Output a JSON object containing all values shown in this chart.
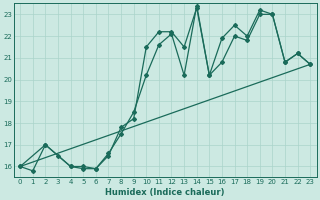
{
  "xlabel": "Humidex (Indice chaleur)",
  "ylabel": "",
  "xlim": [
    -0.5,
    23.5
  ],
  "ylim": [
    15.5,
    23.5
  ],
  "yticks": [
    16,
    17,
    18,
    19,
    20,
    21,
    22,
    23
  ],
  "xticks": [
    0,
    1,
    2,
    3,
    4,
    5,
    6,
    7,
    8,
    9,
    10,
    11,
    12,
    13,
    14,
    15,
    16,
    17,
    18,
    19,
    20,
    21,
    22,
    23
  ],
  "bg_color": "#cce9e2",
  "grid_color": "#aad4cb",
  "line_color": "#1a6b5a",
  "line1_x": [
    0,
    1,
    2,
    3,
    4,
    5,
    6,
    7,
    8,
    9,
    10,
    11,
    12,
    13,
    14,
    15,
    16,
    17,
    18,
    19,
    20,
    21,
    22,
    23
  ],
  "line1_y": [
    16.0,
    15.8,
    17.0,
    16.5,
    16.0,
    15.9,
    15.9,
    16.5,
    17.8,
    18.2,
    21.5,
    22.2,
    22.2,
    21.5,
    23.3,
    20.2,
    20.8,
    22.0,
    21.8,
    23.0,
    23.0,
    20.8,
    21.2,
    20.7
  ],
  "line2_x": [
    0,
    23
  ],
  "line2_y": [
    16.0,
    20.7
  ],
  "line3_x": [
    0,
    2,
    4,
    5,
    6,
    7,
    8,
    9,
    10,
    11,
    12,
    13,
    14,
    15,
    16,
    17,
    18,
    19,
    20,
    21,
    22,
    23
  ],
  "line3_y": [
    16.0,
    17.0,
    16.0,
    16.0,
    15.9,
    16.6,
    17.5,
    18.5,
    20.2,
    21.6,
    22.1,
    20.2,
    23.4,
    20.2,
    21.9,
    22.5,
    22.0,
    23.2,
    23.0,
    20.8,
    21.2,
    20.7
  ]
}
